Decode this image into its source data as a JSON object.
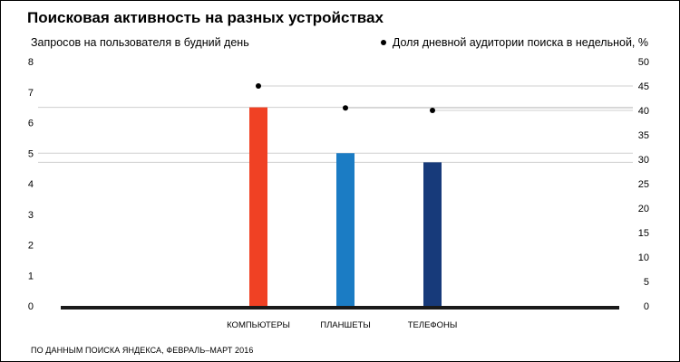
{
  "title": "Поисковая активность на разных устройствах",
  "left_axis_label": "Запросов на пользователя в будний день",
  "right_axis_label": "Доля дневной аудитории поиска в недельной, %",
  "source": "ПО ДАННЫМ ПОИСКА ЯНДЕКСА, ФЕВРАЛЬ–МАРТ 2016",
  "chart_data": {
    "type": "bar",
    "categories": [
      "КОМПЬЮТЕРЫ",
      "ПЛАНШЕТЫ",
      "ТЕЛЕФОНЫ"
    ],
    "series": [
      {
        "name": "Запросов на пользователя в будний день",
        "axis": "left",
        "values": [
          6.5,
          5.0,
          4.7
        ],
        "colors": [
          "#f04124",
          "#1b7cc4",
          "#173a7a"
        ]
      },
      {
        "name": "Доля дневной аудитории поиска в недельной, %",
        "axis": "right",
        "kind": "point",
        "values": [
          45,
          40.5,
          40
        ],
        "color": "#000000"
      }
    ],
    "ylim_left": [
      0,
      8
    ],
    "yticks_left": [
      0,
      1,
      2,
      3,
      4,
      5,
      6,
      7,
      8
    ],
    "ylim_right": [
      0,
      50
    ],
    "yticks_right": [
      0,
      5,
      10,
      15,
      20,
      25,
      30,
      35,
      40,
      45,
      50
    ],
    "grid": "reference lines at bar and point values",
    "legend": "top-right"
  }
}
